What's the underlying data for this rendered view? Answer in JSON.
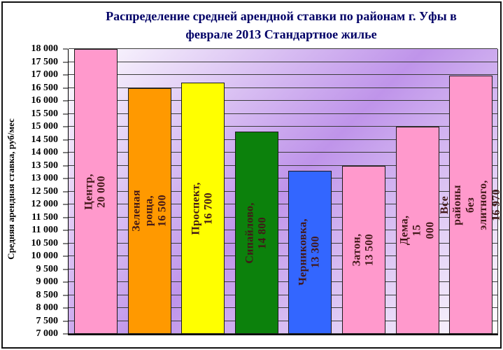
{
  "title": "Распределение средней арендной ставки по районам г. Уфы в\nфеврале 2013  Стандартное жилье",
  "chart_data": {
    "type": "bar",
    "title": "Распределение средней арендной ставки по районам г. Уфы в феврале 2013  Стандартное жилье",
    "xlabel": "",
    "ylabel": "Средняя арендная ставка, руб/мес",
    "y_axis": {
      "label": "Средняя арендная ставка, руб/мес",
      "min": 7000,
      "max": 18000,
      "step": 500,
      "tick_format": "space-thousands",
      "clip_values_above_max": true
    },
    "grid": "horizontal",
    "legend": "none",
    "categories": [
      "Центр",
      "Зеленая роща",
      "Проспект",
      "Сипайлово",
      "Черниковка",
      "Затон",
      "Дема",
      "Все районы без элитного"
    ],
    "values": [
      20000,
      16500,
      16700,
      14800,
      13300,
      13500,
      15000,
      16970
    ],
    "bar_labels": [
      "Центр, 20 000",
      "Зеленая роща, 16 500",
      "Проспект, 16 700",
      "Сипайлово, 14 800",
      "Черниковка, 13 300",
      "Затон, 13 500",
      "Дема, 15 000",
      "Все районы без элитного,\n16 970"
    ],
    "bar_colors": [
      "#FF99CC",
      "#FF9900",
      "#FFFF00",
      "#0c810c",
      "#3366FF",
      "#FF99CC",
      "#FF99CC",
      "#FF99CC"
    ],
    "colors": {
      "title": "#000066",
      "bar_label": "#421818",
      "tick_label": "#000000",
      "gridline": "#3c3c3c",
      "plot_gradient": [
        "#ffffff",
        "#bf94ea",
        "#ffffff"
      ]
    }
  }
}
